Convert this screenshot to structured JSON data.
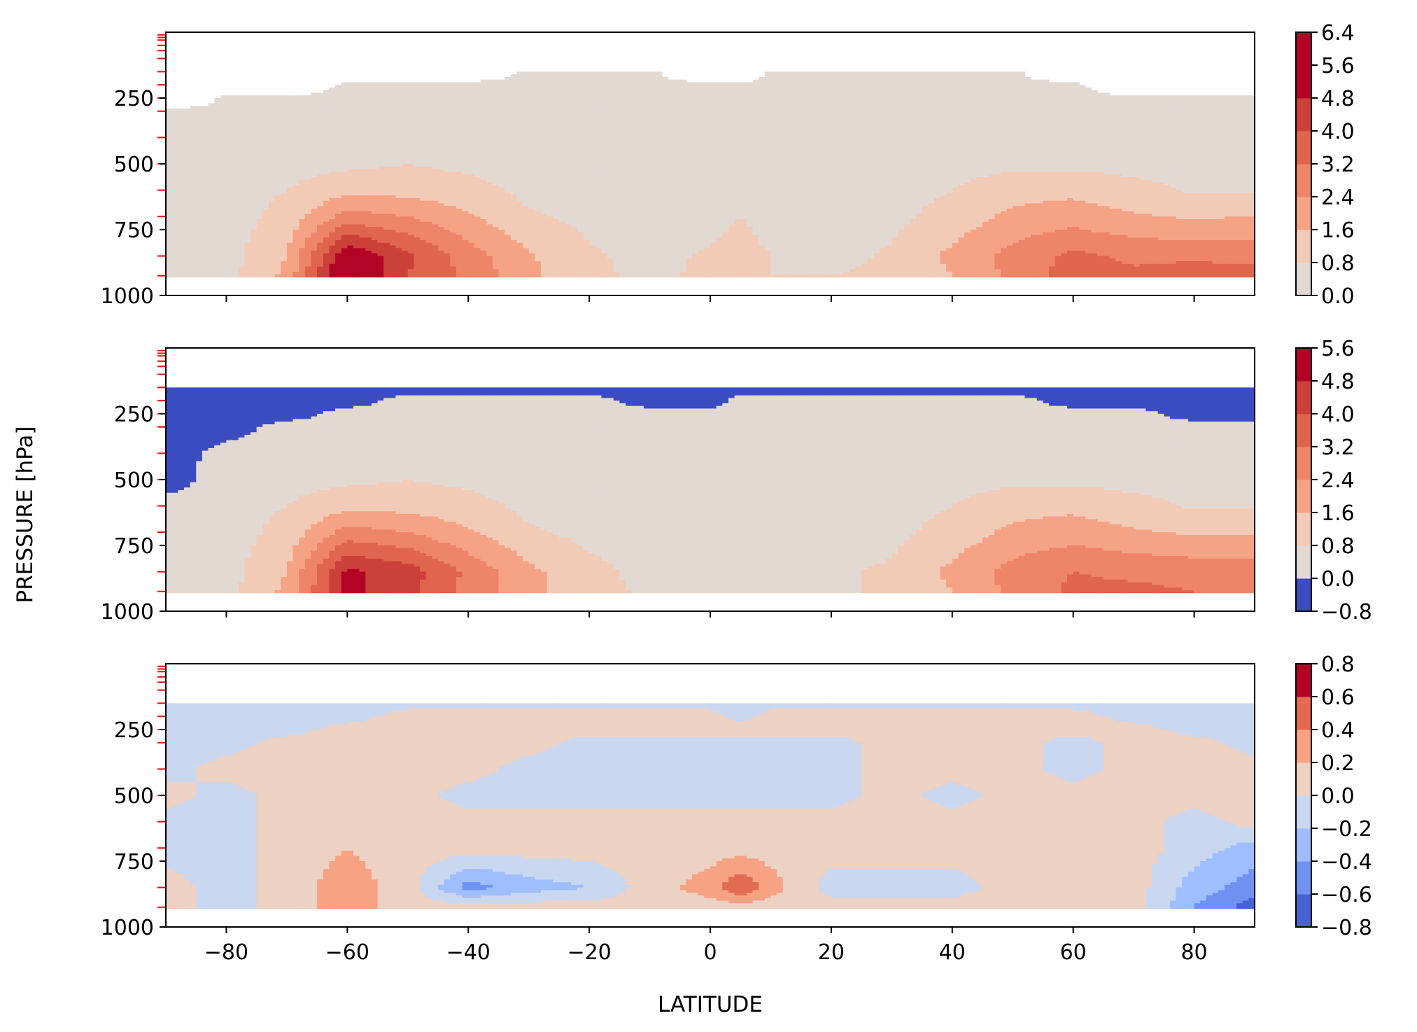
{
  "chart_data": [
    {
      "type": "heatmap",
      "panel": "top",
      "x_range": [
        -90,
        90
      ],
      "y_range": [
        1000,
        0
      ],
      "y_ticks": [
        250,
        500,
        750,
        1000
      ],
      "x_ticks": [
        -80,
        -60,
        -40,
        -20,
        0,
        20,
        40,
        60,
        80
      ],
      "x_tick_labels_visible": false,
      "colorbar": {
        "levels": [
          0.0,
          0.8,
          1.6,
          2.4,
          3.2,
          4.0,
          4.8,
          5.6,
          6.4
        ],
        "labels": [
          "0.0",
          "0.8",
          "1.6",
          "2.4",
          "3.2",
          "4.0",
          "4.8",
          "5.6",
          "6.4"
        ],
        "colors": [
          "#e3d9d3",
          "#f2cbb7",
          "#f6a385",
          "#ee8468",
          "#e0654f",
          "#cc403a",
          "#b40426",
          "#b40426"
        ]
      },
      "field": {
        "lat_nodes": [
          -90,
          -80,
          -70,
          -60,
          -50,
          -40,
          -30,
          -20,
          -10,
          0,
          5,
          10,
          20,
          30,
          40,
          50,
          60,
          70,
          80,
          90
        ],
        "pressure_levels": [
          925,
          850,
          700,
          600,
          500,
          400,
          300,
          250,
          200,
          150
        ],
        "values": [
          [
            0.4,
            0.5,
            1.8,
            6.2,
            4.0,
            3.0,
            1.8,
            0.9,
            0.7,
            0.9,
            1.0,
            0.8,
            0.8,
            0.9,
            1.6,
            2.6,
            3.6,
            3.4,
            3.7,
            3.6
          ],
          [
            0.4,
            0.5,
            1.6,
            5.6,
            4.2,
            2.8,
            1.7,
            0.9,
            0.6,
            0.9,
            1.2,
            0.8,
            0.6,
            0.9,
            1.8,
            2.7,
            3.4,
            3.0,
            3.0,
            2.9
          ],
          [
            0.3,
            0.4,
            1.1,
            2.7,
            2.4,
            1.7,
            0.9,
            0.6,
            0.4,
            0.5,
            0.8,
            0.4,
            0.4,
            0.6,
            1.1,
            1.8,
            2.0,
            1.7,
            1.5,
            1.6
          ],
          [
            0.3,
            0.4,
            0.8,
            1.4,
            1.3,
            1.1,
            0.6,
            0.5,
            0.4,
            0.4,
            0.4,
            0.4,
            0.4,
            0.5,
            0.8,
            1.3,
            1.4,
            1.1,
            0.7,
            0.7
          ],
          [
            0.3,
            0.4,
            0.5,
            0.6,
            0.8,
            0.6,
            0.4,
            0.3,
            0.3,
            0.3,
            0.3,
            0.3,
            0.3,
            0.4,
            0.5,
            0.6,
            0.6,
            0.5,
            0.5,
            0.5
          ],
          [
            0.3,
            0.3,
            0.3,
            0.4,
            0.4,
            0.4,
            0.3,
            0.3,
            0.3,
            0.3,
            0.3,
            0.3,
            0.3,
            0.3,
            0.3,
            0.4,
            0.4,
            0.3,
            0.3,
            0.3
          ],
          [
            0.2,
            0.2,
            0.3,
            0.3,
            0.3,
            0.3,
            0.3,
            0.3,
            0.3,
            0.3,
            0.3,
            0.3,
            0.3,
            0.3,
            0.3,
            0.3,
            0.3,
            0.3,
            0.3,
            0.2
          ],
          [
            -1,
            0.2,
            0.2,
            0.3,
            0.3,
            0.3,
            0.3,
            0.3,
            0.3,
            0.3,
            0.3,
            0.3,
            0.3,
            0.3,
            0.3,
            0.3,
            0.3,
            0.2,
            0.2,
            0.2
          ],
          [
            -1,
            -1,
            -1,
            0.2,
            0.2,
            0.3,
            0.3,
            0.3,
            0.2,
            0.2,
            0.2,
            0.3,
            0.3,
            0.3,
            0.3,
            0.2,
            0.2,
            -1,
            -1,
            -1
          ],
          [
            -1,
            -1,
            -1,
            -1,
            -1,
            -1,
            0.2,
            0.2,
            0.2,
            -1,
            -1,
            0.2,
            0.2,
            0.2,
            0.2,
            0.2,
            -1,
            -1,
            -1,
            -1
          ]
        ]
      }
    },
    {
      "type": "heatmap",
      "panel": "middle",
      "x_range": [
        -90,
        90
      ],
      "y_range": [
        1000,
        0
      ],
      "y_ticks": [
        250,
        500,
        750,
        1000
      ],
      "x_ticks": [
        -80,
        -60,
        -40,
        -20,
        0,
        20,
        40,
        60,
        80
      ],
      "x_tick_labels_visible": false,
      "colorbar": {
        "levels": [
          -0.8,
          0.0,
          0.8,
          1.6,
          2.4,
          3.2,
          4.0,
          4.8,
          5.6
        ],
        "labels": [
          "−0.8",
          "0.0",
          "0.8",
          "1.6",
          "2.4",
          "3.2",
          "4.0",
          "4.8",
          "5.6"
        ],
        "colors": [
          "#3b4cc0",
          "#e3d9d3",
          "#f2cbb7",
          "#f6a385",
          "#ee8468",
          "#e0654f",
          "#cc403a",
          "#b40426"
        ]
      },
      "field": {
        "lat_nodes": [
          -90,
          -80,
          -70,
          -60,
          -50,
          -40,
          -30,
          -20,
          -10,
          0,
          5,
          10,
          20,
          30,
          40,
          50,
          60,
          70,
          80,
          90
        ],
        "pressure_levels": [
          925,
          850,
          700,
          600,
          500,
          400,
          300,
          250,
          200,
          150
        ],
        "values": [
          [
            0.4,
            0.5,
            1.8,
            5.0,
            4.2,
            3.0,
            1.8,
            1.0,
            0.7,
            0.6,
            0.6,
            0.6,
            0.7,
            0.9,
            1.6,
            2.6,
            3.4,
            3.4,
            3.2,
            3.1
          ],
          [
            0.4,
            0.5,
            1.6,
            5.0,
            4.4,
            3.0,
            1.8,
            1.0,
            0.6,
            0.6,
            0.6,
            0.6,
            0.7,
            0.9,
            1.8,
            2.7,
            3.2,
            3.0,
            2.9,
            2.9
          ],
          [
            0.3,
            0.4,
            1.1,
            2.7,
            2.4,
            1.7,
            0.9,
            0.6,
            0.4,
            0.4,
            0.4,
            0.4,
            0.4,
            0.6,
            1.1,
            1.8,
            2.0,
            1.7,
            1.5,
            1.5
          ],
          [
            0.3,
            0.4,
            0.8,
            1.4,
            1.3,
            1.1,
            0.6,
            0.5,
            0.4,
            0.4,
            0.4,
            0.4,
            0.4,
            0.5,
            0.8,
            1.3,
            1.4,
            1.1,
            0.7,
            0.7
          ],
          [
            -0.4,
            0.4,
            0.5,
            0.6,
            0.8,
            0.6,
            0.4,
            0.3,
            0.3,
            0.3,
            0.3,
            0.3,
            0.3,
            0.4,
            0.5,
            0.6,
            0.6,
            0.5,
            0.5,
            0.5
          ],
          [
            -0.4,
            0.3,
            0.3,
            0.4,
            0.4,
            0.4,
            0.3,
            0.3,
            0.3,
            0.3,
            0.3,
            0.3,
            0.3,
            0.3,
            0.3,
            0.4,
            0.4,
            0.3,
            0.3,
            0.3
          ],
          [
            -0.4,
            -0.4,
            0.3,
            0.3,
            0.3,
            0.3,
            0.3,
            0.3,
            0.3,
            0.3,
            0.3,
            0.3,
            0.3,
            0.3,
            0.3,
            0.3,
            0.3,
            0.3,
            0.3,
            0.3
          ],
          [
            -0.4,
            -0.4,
            -0.4,
            0.3,
            0.3,
            0.3,
            0.3,
            0.3,
            0.3,
            0.3,
            0.3,
            0.3,
            0.3,
            0.3,
            0.3,
            0.3,
            0.3,
            0.3,
            -0.4,
            -0.4
          ],
          [
            -0.4,
            -0.4,
            -0.4,
            -0.4,
            0.3,
            0.3,
            0.3,
            0.3,
            -0.4,
            -0.4,
            0.3,
            0.3,
            0.3,
            0.3,
            0.3,
            0.3,
            -0.4,
            -0.4,
            -0.4,
            -0.4
          ],
          [
            -0.4,
            -0.4,
            -0.4,
            -0.4,
            -0.4,
            -0.4,
            -0.4,
            -0.4,
            -0.4,
            -0.4,
            -0.4,
            -0.4,
            -0.4,
            -0.4,
            -0.4,
            -0.4,
            -0.4,
            -0.4,
            -0.4,
            -0.4
          ]
        ]
      }
    },
    {
      "type": "heatmap",
      "panel": "bottom",
      "x_range": [
        -90,
        90
      ],
      "y_range": [
        1000,
        0
      ],
      "y_ticks": [
        250,
        500,
        750,
        1000
      ],
      "x_ticks": [
        -80,
        -60,
        -40,
        -20,
        0,
        20,
        40,
        60,
        80
      ],
      "x_tick_labels": [
        "−80",
        "−60",
        "−40",
        "−20",
        "0",
        "20",
        "40",
        "60",
        "80"
      ],
      "colorbar": {
        "levels": [
          -0.8,
          -0.6,
          -0.4,
          -0.2,
          0.0,
          0.2,
          0.4,
          0.6,
          0.8
        ],
        "labels": [
          "−0.8",
          "−0.6",
          "−0.4",
          "−0.2",
          "0.0",
          "0.2",
          "0.4",
          "0.6",
          "0.8"
        ],
        "colors": [
          "#4961d2",
          "#6f92f3",
          "#9ebeff",
          "#c9d7f0",
          "#edd1c2",
          "#f6a283",
          "#e36b54",
          "#b40426"
        ]
      },
      "field": {
        "lat_nodes": [
          -90,
          -80,
          -70,
          -60,
          -50,
          -40,
          -30,
          -20,
          -10,
          0,
          5,
          10,
          20,
          30,
          40,
          50,
          60,
          70,
          80,
          90
        ],
        "pressure_levels": [
          925,
          850,
          700,
          600,
          500,
          400,
          300,
          250,
          200,
          150
        ],
        "values": [
          [
            0.1,
            -0.1,
            0.1,
            0.3,
            0.1,
            0.1,
            0.1,
            0.1,
            0.1,
            0.1,
            0.1,
            0.1,
            0.1,
            0.1,
            0.1,
            0.1,
            0.1,
            0.1,
            -0.4,
            -0.7
          ],
          [
            0.1,
            -0.1,
            0.1,
            0.3,
            0.1,
            -0.5,
            -0.3,
            -0.2,
            0.1,
            0.3,
            0.6,
            0.3,
            -0.1,
            -0.1,
            -0.1,
            0.1,
            0.1,
            0.1,
            -0.3,
            -0.5
          ],
          [
            -0.1,
            -0.1,
            0.1,
            0.2,
            0.1,
            0.1,
            0.1,
            0.1,
            0.1,
            0.1,
            0.1,
            0.1,
            0.1,
            0.1,
            0.1,
            0.1,
            0.1,
            0.1,
            -0.1,
            -0.3
          ],
          [
            -0.1,
            -0.1,
            0.1,
            0.1,
            0.1,
            0.1,
            0.1,
            0.1,
            0.1,
            0.1,
            0.1,
            0.1,
            0.1,
            0.1,
            0.1,
            0.1,
            0.1,
            0.1,
            -0.1,
            0.1
          ],
          [
            0.1,
            -0.1,
            0.1,
            0.1,
            0.1,
            -0.1,
            -0.1,
            -0.1,
            -0.1,
            -0.1,
            -0.1,
            -0.1,
            -0.1,
            0.1,
            -0.1,
            0.1,
            0.1,
            0.1,
            0.1,
            0.1
          ],
          [
            -0.1,
            0.1,
            0.1,
            0.1,
            0.1,
            0.1,
            -0.1,
            -0.1,
            -0.1,
            -0.1,
            -0.1,
            -0.1,
            -0.1,
            0.1,
            0.1,
            0.1,
            -0.1,
            0.1,
            0.1,
            0.1
          ],
          [
            -0.1,
            -0.1,
            0.1,
            0.1,
            0.1,
            0.1,
            0.1,
            -0.1,
            -0.1,
            -0.1,
            -0.1,
            -0.1,
            -0.1,
            0.1,
            0.1,
            0.1,
            -0.1,
            0.1,
            0.1,
            -0.1
          ],
          [
            -0.1,
            -0.1,
            -0.1,
            0.1,
            0.1,
            0.1,
            0.1,
            0.1,
            0.1,
            0.1,
            0.1,
            0.1,
            0.1,
            0.1,
            0.1,
            0.1,
            0.1,
            0.1,
            -0.1,
            -0.1
          ],
          [
            -0.1,
            -0.1,
            -0.1,
            -0.1,
            0.1,
            0.1,
            0.1,
            0.1,
            0.1,
            0.1,
            -0.1,
            0.1,
            0.1,
            0.1,
            0.1,
            0.1,
            0.1,
            -0.1,
            -0.1,
            -0.1
          ],
          [
            -0.1,
            -0.1,
            -0.1,
            -0.1,
            -0.1,
            -0.1,
            -0.1,
            -0.1,
            -0.1,
            -0.1,
            -0.1,
            -0.1,
            -0.1,
            -0.1,
            -0.1,
            -0.1,
            -0.1,
            -0.1,
            -0.1,
            -0.1
          ]
        ]
      }
    }
  ],
  "y_tick_labels": [
    "250",
    "500",
    "750",
    "1000"
  ],
  "ylabel": "PRESSURE [hPa]",
  "xlabel": "LATITUDE",
  "pressure_marker_levels": [
    10,
    20,
    30,
    50,
    70,
    100,
    150,
    200,
    250,
    300,
    400,
    500,
    600,
    700,
    850,
    925
  ],
  "pressure_marker_color": "#ff0000"
}
